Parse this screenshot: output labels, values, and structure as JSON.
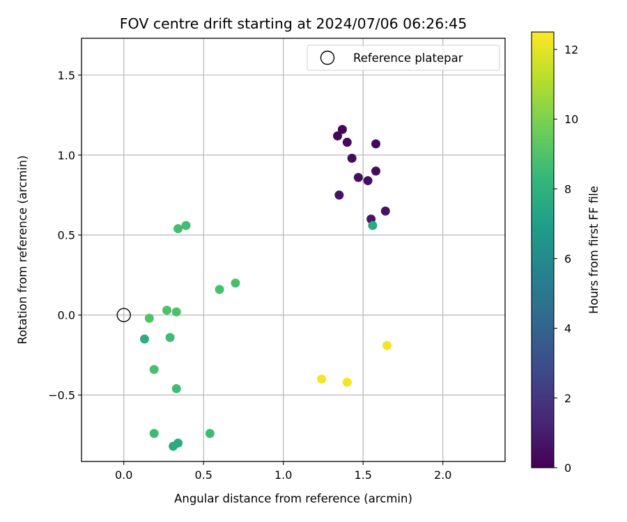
{
  "chart_data": {
    "type": "scatter",
    "title": "FOV centre drift starting at 2024/07/06 06:26:45",
    "xlabel": "Angular distance from reference (arcmin)",
    "ylabel": "Rotation from reference (arcmin)",
    "xlim": [
      -0.265,
      2.39
    ],
    "ylim": [
      -0.915,
      1.73
    ],
    "xticks": [
      0.0,
      0.5,
      1.0,
      1.5,
      2.0
    ],
    "xtick_labels": [
      "0.0",
      "0.5",
      "1.0",
      "1.5",
      "2.0"
    ],
    "yticks": [
      -0.5,
      0.0,
      0.5,
      1.0,
      1.5
    ],
    "ytick_labels": [
      "−0.5",
      "0.0",
      "0.5",
      "1.0",
      "1.5"
    ],
    "grid": true,
    "legend": {
      "placement": "top-right",
      "entries": [
        "Reference platepar"
      ]
    },
    "reference_point": {
      "x": 0.0,
      "y": 0.0,
      "label": "Reference platepar"
    },
    "colorbar": {
      "label": "Hours from first FF file",
      "range": [
        0,
        12.5
      ],
      "ticks": [
        0,
        2,
        4,
        6,
        8,
        10,
        12
      ],
      "tick_labels": [
        "0",
        "2",
        "4",
        "6",
        "8",
        "10",
        "12"
      ],
      "colormap": "viridis"
    },
    "points": [
      {
        "x": 1.37,
        "y": 1.16,
        "hours": 0.2
      },
      {
        "x": 1.34,
        "y": 1.12,
        "hours": 0.2
      },
      {
        "x": 1.4,
        "y": 1.08,
        "hours": 0.3
      },
      {
        "x": 1.58,
        "y": 1.07,
        "hours": 0.3
      },
      {
        "x": 1.43,
        "y": 0.98,
        "hours": 0.4
      },
      {
        "x": 1.58,
        "y": 0.9,
        "hours": 0.4
      },
      {
        "x": 1.47,
        "y": 0.86,
        "hours": 0.5
      },
      {
        "x": 1.53,
        "y": 0.84,
        "hours": 0.5
      },
      {
        "x": 1.35,
        "y": 0.75,
        "hours": 0.6
      },
      {
        "x": 1.64,
        "y": 0.65,
        "hours": 0.6
      },
      {
        "x": 1.55,
        "y": 0.6,
        "hours": 0.7
      },
      {
        "x": 1.56,
        "y": 0.56,
        "hours": 7.6
      },
      {
        "x": 0.39,
        "y": 0.56,
        "hours": 8.7
      },
      {
        "x": 0.34,
        "y": 0.54,
        "hours": 8.7
      },
      {
        "x": 0.7,
        "y": 0.2,
        "hours": 8.8
      },
      {
        "x": 0.6,
        "y": 0.16,
        "hours": 8.8
      },
      {
        "x": 0.27,
        "y": 0.03,
        "hours": 8.9
      },
      {
        "x": 0.33,
        "y": 0.02,
        "hours": 8.9
      },
      {
        "x": 0.16,
        "y": -0.02,
        "hours": 9.0
      },
      {
        "x": 0.13,
        "y": -0.15,
        "hours": 7.8
      },
      {
        "x": 0.29,
        "y": -0.14,
        "hours": 8.6
      },
      {
        "x": 0.19,
        "y": -0.34,
        "hours": 8.8
      },
      {
        "x": 0.33,
        "y": -0.46,
        "hours": 8.6
      },
      {
        "x": 0.19,
        "y": -0.74,
        "hours": 8.6
      },
      {
        "x": 0.54,
        "y": -0.74,
        "hours": 8.6
      },
      {
        "x": 0.34,
        "y": -0.8,
        "hours": 7.6
      },
      {
        "x": 0.31,
        "y": -0.82,
        "hours": 7.6
      },
      {
        "x": 1.65,
        "y": -0.19,
        "hours": 12.3
      },
      {
        "x": 1.24,
        "y": -0.4,
        "hours": 12.3
      },
      {
        "x": 1.4,
        "y": -0.42,
        "hours": 12.3
      }
    ]
  }
}
